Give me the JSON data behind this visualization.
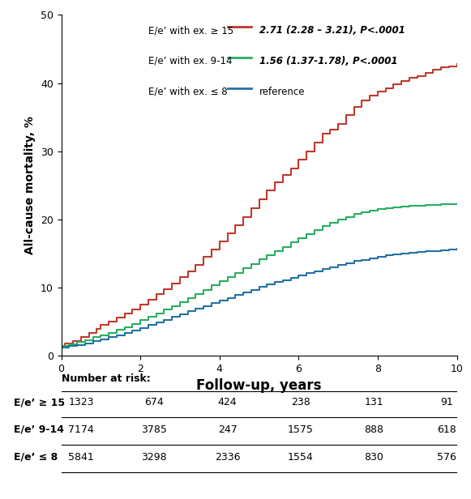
{
  "title": "",
  "ylabel": "All-cause mortality, %",
  "xlabel": "Follow-up, years",
  "ylim": [
    0,
    50
  ],
  "xlim": [
    0,
    10
  ],
  "yticks": [
    0,
    10,
    20,
    30,
    40,
    50
  ],
  "xticks": [
    0,
    2,
    4,
    6,
    8,
    10
  ],
  "legend_entries": [
    {
      "label": "E/e’ with ex. ≥ 15",
      "color": "#c0392b",
      "stat": "2.71 (2.28 – 3.21), P<.0001"
    },
    {
      "label": "E/e’ with ex. 9-14",
      "color": "#27ae60",
      "stat": "1.56 (1.37-1.78), P<.0001"
    },
    {
      "label": "E/e’ with ex. ≤ 8",
      "color": "#2471a3",
      "stat": "reference"
    }
  ],
  "red_curve": {
    "x": [
      0,
      0.1,
      0.3,
      0.5,
      0.7,
      0.9,
      1.0,
      1.2,
      1.4,
      1.6,
      1.8,
      2.0,
      2.2,
      2.4,
      2.6,
      2.8,
      3.0,
      3.2,
      3.4,
      3.6,
      3.8,
      4.0,
      4.2,
      4.4,
      4.6,
      4.8,
      5.0,
      5.2,
      5.4,
      5.6,
      5.8,
      6.0,
      6.2,
      6.4,
      6.6,
      6.8,
      7.0,
      7.2,
      7.4,
      7.6,
      7.8,
      8.0,
      8.2,
      8.4,
      8.6,
      8.8,
      9.0,
      9.2,
      9.4,
      9.6,
      9.8,
      10.0
    ],
    "y": [
      1.5,
      1.8,
      2.2,
      2.8,
      3.4,
      4.0,
      4.5,
      5.0,
      5.6,
      6.2,
      6.8,
      7.5,
      8.2,
      9.0,
      9.8,
      10.6,
      11.5,
      12.4,
      13.3,
      14.5,
      15.6,
      16.8,
      18.0,
      19.2,
      20.4,
      21.7,
      23.0,
      24.3,
      25.5,
      26.5,
      27.5,
      28.8,
      30.0,
      31.3,
      32.6,
      33.2,
      34.0,
      35.3,
      36.5,
      37.5,
      38.2,
      38.8,
      39.3,
      39.8,
      40.3,
      40.8,
      41.0,
      41.5,
      42.0,
      42.3,
      42.5,
      42.8
    ]
  },
  "green_curve": {
    "x": [
      0,
      0.2,
      0.4,
      0.6,
      0.8,
      1.0,
      1.2,
      1.4,
      1.6,
      1.8,
      2.0,
      2.2,
      2.4,
      2.6,
      2.8,
      3.0,
      3.2,
      3.4,
      3.6,
      3.8,
      4.0,
      4.2,
      4.4,
      4.6,
      4.8,
      5.0,
      5.2,
      5.4,
      5.6,
      5.8,
      6.0,
      6.2,
      6.4,
      6.6,
      6.8,
      7.0,
      7.2,
      7.4,
      7.6,
      7.8,
      8.0,
      8.2,
      8.4,
      8.6,
      8.8,
      9.0,
      9.2,
      9.4,
      9.6,
      9.8,
      10.0
    ],
    "y": [
      1.5,
      1.7,
      2.0,
      2.3,
      2.7,
      3.0,
      3.4,
      3.8,
      4.2,
      4.7,
      5.2,
      5.7,
      6.2,
      6.8,
      7.3,
      7.9,
      8.5,
      9.1,
      9.7,
      10.4,
      11.0,
      11.6,
      12.2,
      12.8,
      13.5,
      14.2,
      14.8,
      15.4,
      16.0,
      16.6,
      17.2,
      17.8,
      18.4,
      19.0,
      19.5,
      20.0,
      20.4,
      20.8,
      21.0,
      21.3,
      21.5,
      21.7,
      21.8,
      21.9,
      22.0,
      22.0,
      22.1,
      22.1,
      22.2,
      22.2,
      22.3
    ]
  },
  "blue_curve": {
    "x": [
      0,
      0.2,
      0.4,
      0.6,
      0.8,
      1.0,
      1.2,
      1.4,
      1.6,
      1.8,
      2.0,
      2.2,
      2.4,
      2.6,
      2.8,
      3.0,
      3.2,
      3.4,
      3.6,
      3.8,
      4.0,
      4.2,
      4.4,
      4.6,
      4.8,
      5.0,
      5.2,
      5.4,
      5.6,
      5.8,
      6.0,
      6.2,
      6.4,
      6.6,
      6.8,
      7.0,
      7.2,
      7.4,
      7.6,
      7.8,
      8.0,
      8.2,
      8.4,
      8.6,
      8.8,
      9.0,
      9.2,
      9.4,
      9.6,
      9.8,
      10.0
    ],
    "y": [
      1.2,
      1.4,
      1.6,
      1.8,
      2.1,
      2.4,
      2.7,
      3.0,
      3.3,
      3.7,
      4.1,
      4.5,
      4.9,
      5.3,
      5.7,
      6.1,
      6.5,
      6.9,
      7.3,
      7.7,
      8.1,
      8.5,
      8.9,
      9.3,
      9.7,
      10.1,
      10.5,
      10.8,
      11.1,
      11.4,
      11.8,
      12.1,
      12.4,
      12.7,
      13.0,
      13.3,
      13.6,
      13.9,
      14.1,
      14.3,
      14.5,
      14.7,
      14.9,
      15.0,
      15.1,
      15.2,
      15.3,
      15.4,
      15.5,
      15.6,
      15.7
    ]
  },
  "table": {
    "header": "Number at risk:",
    "rows": [
      {
        "label": "E/e’ ≥ 15",
        "values": [
          "1323",
          "674",
          "424",
          "238",
          "131",
          "91"
        ],
        "bold": true
      },
      {
        "label": "E/e’ 9-14",
        "values": [
          "7174",
          "3785",
          "247",
          "1575",
          "888",
          "618"
        ],
        "bold": true
      },
      {
        "label": "E/e’ ≤ 8",
        "values": [
          "5841",
          "3298",
          "2336",
          "1554",
          "830",
          "576"
        ],
        "bold": true
      }
    ],
    "col_positions": [
      0,
      2,
      4,
      6,
      8,
      10
    ]
  },
  "colors": {
    "red": "#c0392b",
    "green": "#27ae60",
    "blue": "#2471a3",
    "text": "#000000",
    "background": "#ffffff"
  }
}
